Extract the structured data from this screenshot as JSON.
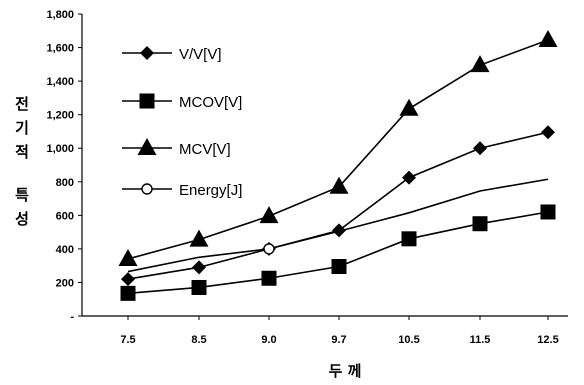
{
  "chart_data": {
    "type": "line",
    "xlabel": "두 께",
    "ylabel": [
      "전",
      "기",
      "적",
      "특",
      "성"
    ],
    "categories": [
      "7.5",
      "8.5",
      "9.0",
      "9.7",
      "10.5",
      "11.5",
      "12.5"
    ],
    "y_ticks": [
      "-",
      "200",
      "400",
      "600",
      "800",
      "1,000",
      "1,200",
      "1,400",
      "1,600",
      "1,800"
    ],
    "ylim": [
      0,
      1800
    ],
    "grid": false,
    "legend_position": "top-left",
    "series": [
      {
        "name": "V/V[V]",
        "marker": "diamond",
        "values": [
          220,
          290,
          400,
          510,
          825,
          1000,
          1095
        ]
      },
      {
        "name": "MCOV[V]",
        "marker": "square",
        "values": [
          135,
          170,
          225,
          295,
          460,
          550,
          620
        ]
      },
      {
        "name": "MCV[V]",
        "marker": "triangle",
        "values": [
          340,
          455,
          595,
          770,
          1235,
          1495,
          1645
        ]
      },
      {
        "name": "Energy[J]",
        "marker": "circle",
        "values": [
          265,
          350,
          400,
          505,
          615,
          745,
          815
        ]
      }
    ]
  }
}
